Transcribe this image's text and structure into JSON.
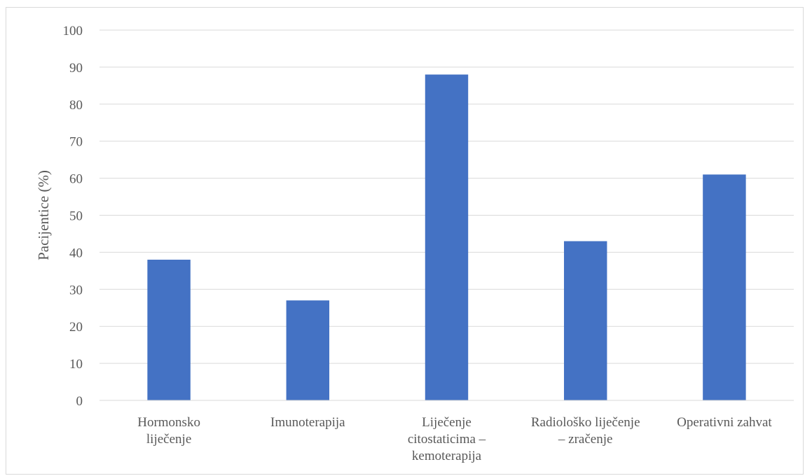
{
  "chart_data": {
    "type": "bar",
    "title": "",
    "xlabel": "",
    "ylabel": "Pacijentice (%)",
    "ylim": [
      0,
      100
    ],
    "yticks": [
      0,
      10,
      20,
      30,
      40,
      50,
      60,
      70,
      80,
      90,
      100
    ],
    "grid": true,
    "legend": "none",
    "bar_color": "#4472c4",
    "categories": [
      [
        "Hormonsko",
        "liječenje"
      ],
      [
        "Imunoterapija"
      ],
      [
        "Liječenje",
        "citostaticima –",
        "kemoterapija"
      ],
      [
        "Radiološko liječenje",
        "– zračenje"
      ],
      [
        "Operativni zahvat"
      ]
    ],
    "values": [
      38,
      27,
      88,
      43,
      61
    ]
  }
}
